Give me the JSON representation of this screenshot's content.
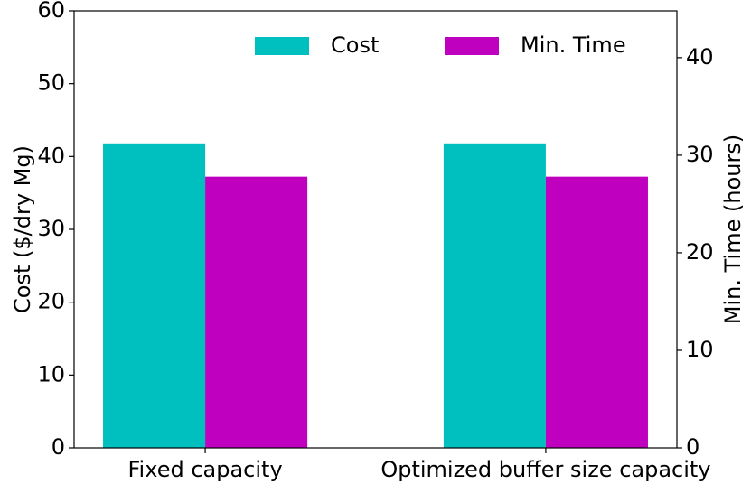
{
  "chart_data": {
    "type": "bar",
    "categories": [
      "Fixed capacity",
      "Optimized buffer size capacity"
    ],
    "series": [
      {
        "name": "Cost",
        "color": "#00bfbf",
        "values": [
          41.8,
          41.8
        ]
      },
      {
        "name": "Min. Time",
        "color": "#bf00bf",
        "values": [
          27.8,
          27.8
        ],
        "axis": "y2"
      }
    ],
    "ylabel": "Cost ($/dry Mg)",
    "y2label": "Min. Time (hours)",
    "ylim": [
      0,
      60
    ],
    "yticks": [
      0,
      10,
      20,
      30,
      40,
      50,
      60
    ],
    "y2lim": [
      0,
      44.8
    ],
    "y2ticks": [
      0,
      10,
      20,
      30,
      40
    ],
    "legend": "upper right"
  }
}
